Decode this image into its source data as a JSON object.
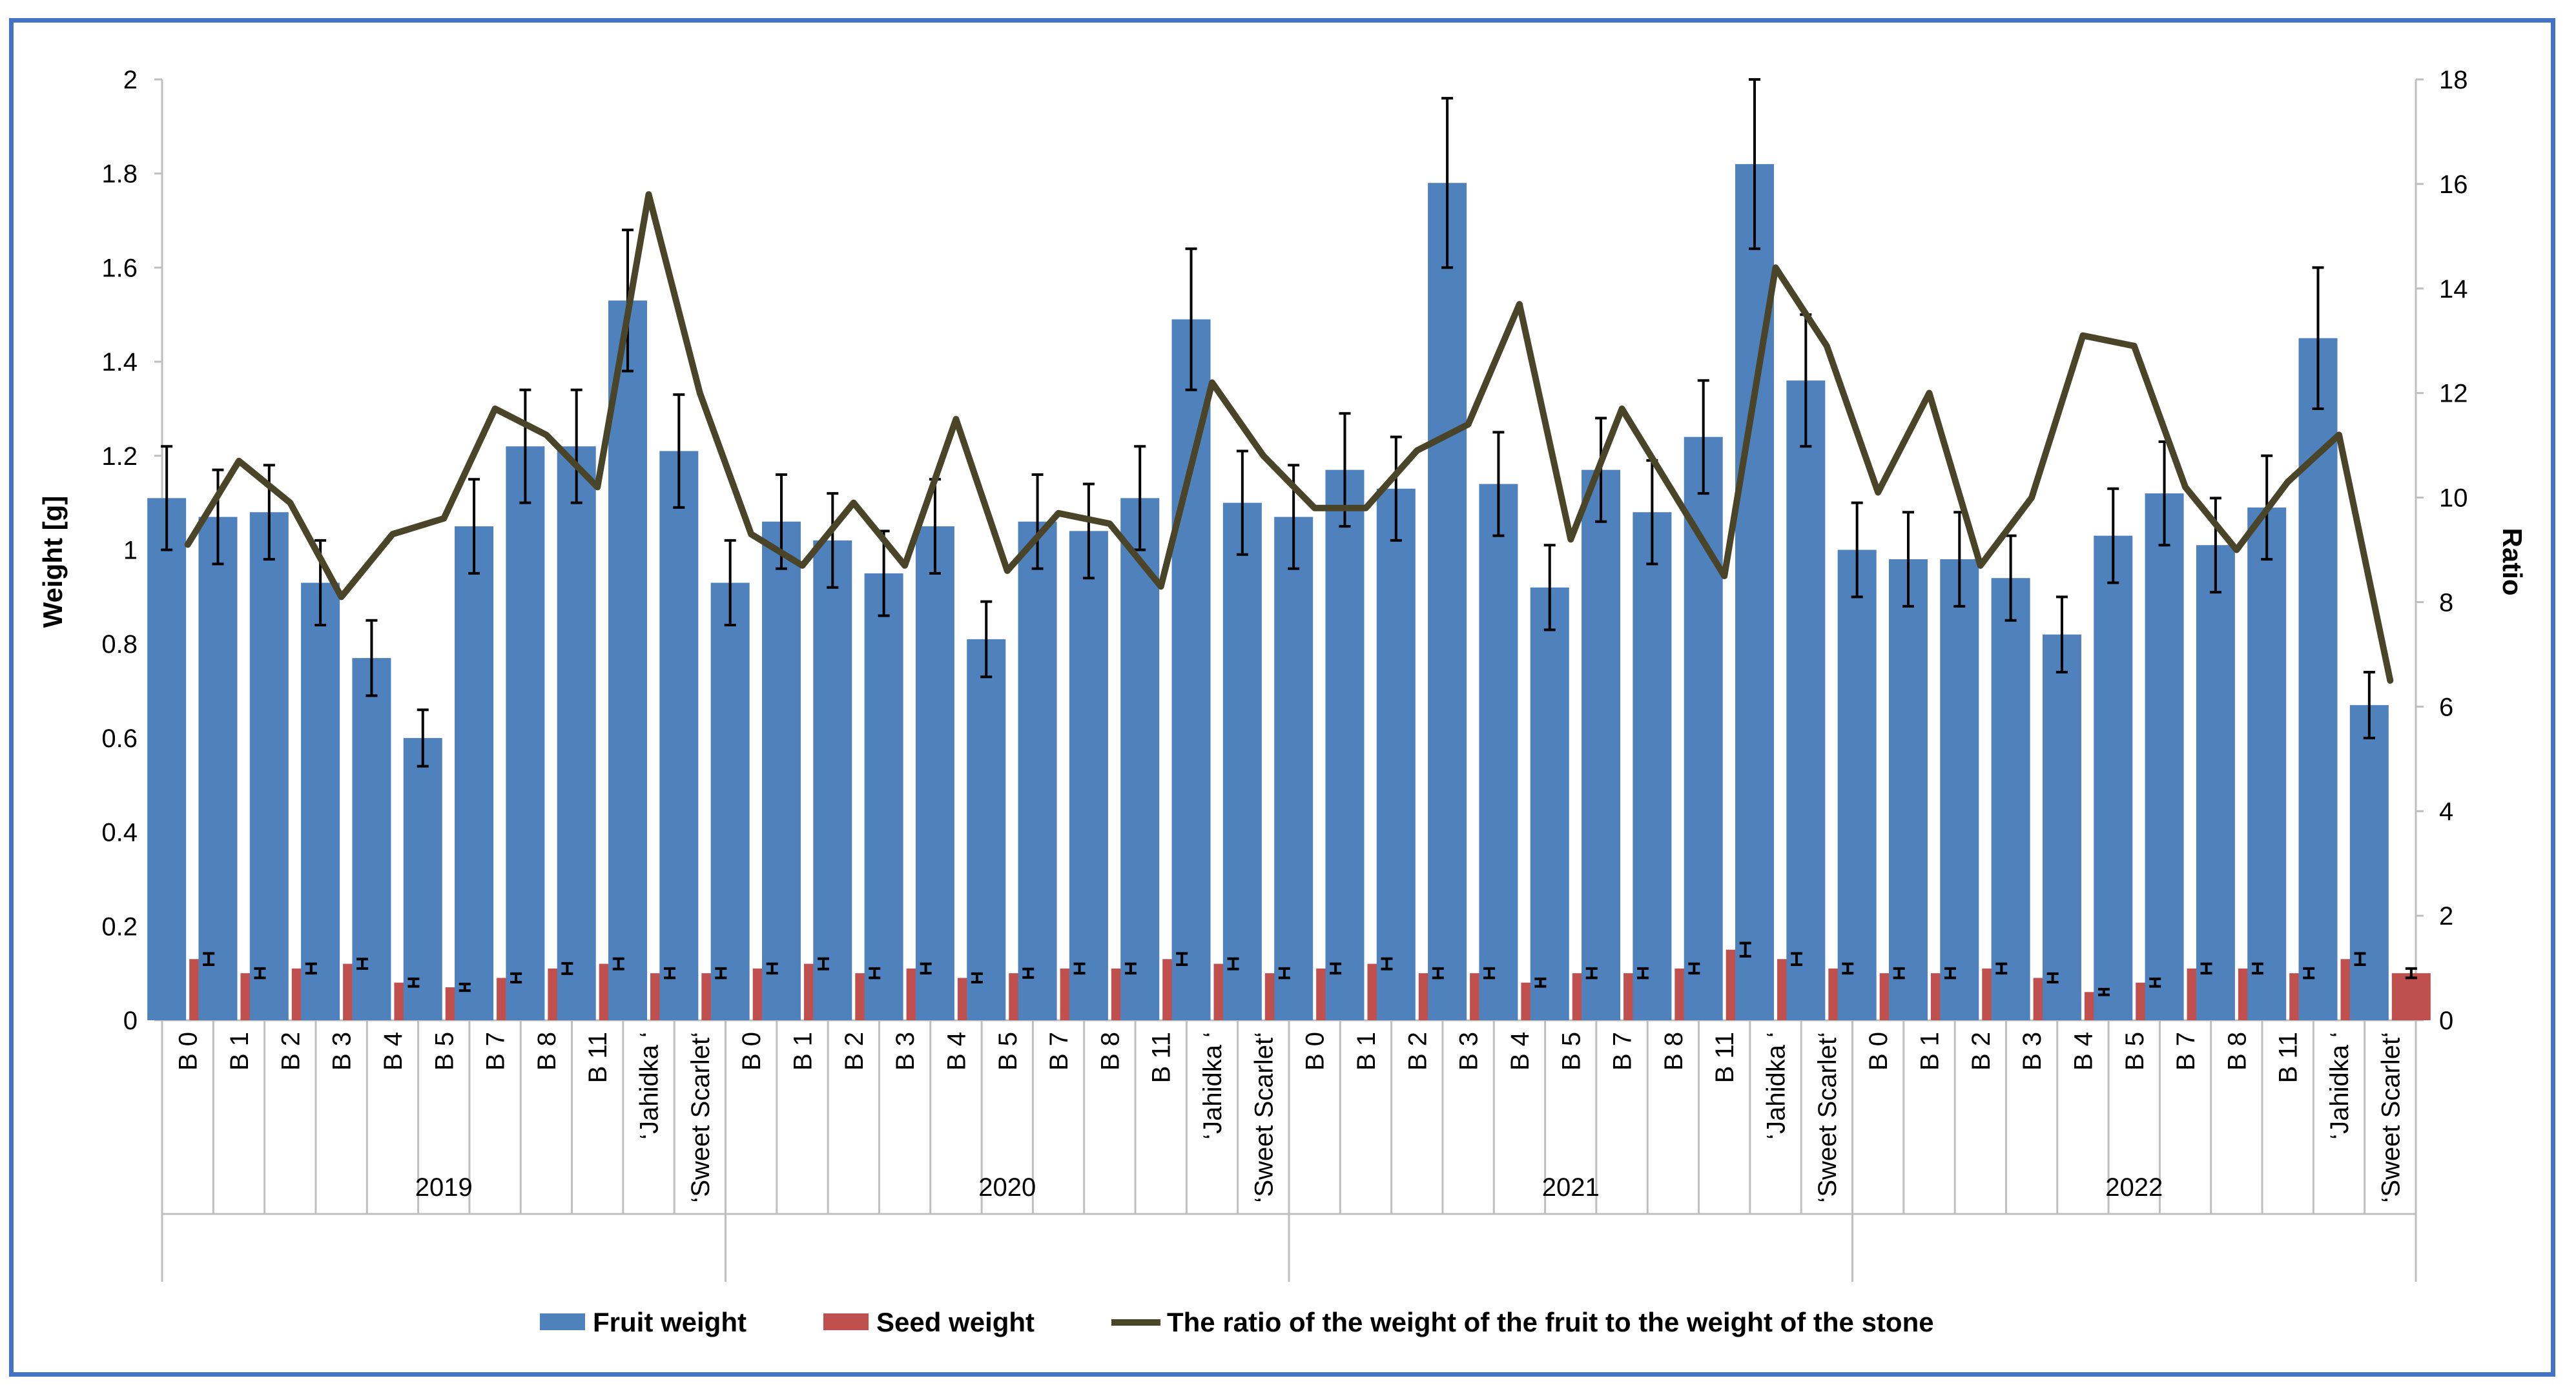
{
  "chart_data": {
    "type": "bar",
    "title": "",
    "ylabel": "Weight [g]",
    "y2label": "Ratio",
    "ylim": [
      0,
      2
    ],
    "y_ticks": [
      0,
      0.2,
      0.4,
      0.6,
      0.8,
      1,
      1.2,
      1.4,
      1.6,
      1.8,
      2
    ],
    "y_tick_labels": [
      "0",
      "0.2",
      "0.4",
      "0.6",
      "0.8",
      "1",
      "1.2",
      "1.4",
      "1.6",
      "1.8",
      "2"
    ],
    "y2lim": [
      0,
      18
    ],
    "y2_ticks": [
      0,
      2,
      4,
      6,
      8,
      10,
      12,
      14,
      16,
      18
    ],
    "y2_tick_labels": [
      "0",
      "2",
      "4",
      "6",
      "8",
      "10",
      "12",
      "14",
      "16",
      "18"
    ],
    "groups": [
      "2019",
      "2020",
      "2021",
      "2022"
    ],
    "group_categories": [
      "B 0",
      "B 1",
      "B 2",
      "B 3",
      "B 4",
      "B 5",
      "B 7",
      "B 8",
      "B 11",
      "‘Jahidka ‘",
      "‘Sweet Scarlet‘"
    ],
    "grid": false,
    "legend_position": "bottom",
    "series": [
      {
        "name": "Fruit weight",
        "kind": "bar",
        "axis": "left",
        "color": "#4F81BD",
        "values": [
          1.11,
          1.07,
          1.08,
          0.93,
          0.77,
          0.6,
          1.05,
          1.22,
          1.22,
          1.53,
          1.21,
          0.93,
          1.06,
          1.02,
          0.95,
          1.05,
          0.81,
          1.06,
          1.04,
          1.11,
          1.49,
          1.1,
          1.07,
          1.17,
          1.13,
          1.78,
          1.14,
          0.92,
          1.17,
          1.08,
          1.24,
          1.82,
          1.36,
          1.0,
          0.98,
          0.98,
          0.94,
          0.82,
          1.03,
          1.12,
          1.01,
          1.09,
          1.45,
          0.67
        ],
        "errors": [
          0.11,
          0.1,
          0.1,
          0.09,
          0.08,
          0.06,
          0.1,
          0.12,
          0.12,
          0.15,
          0.12,
          0.09,
          0.1,
          0.1,
          0.09,
          0.1,
          0.08,
          0.1,
          0.1,
          0.11,
          0.15,
          0.11,
          0.11,
          0.12,
          0.11,
          0.18,
          0.11,
          0.09,
          0.11,
          0.11,
          0.12,
          0.18,
          0.14,
          0.1,
          0.1,
          0.1,
          0.09,
          0.08,
          0.1,
          0.11,
          0.1,
          0.11,
          0.15,
          0.07
        ]
      },
      {
        "name": "Seed weight",
        "kind": "bar",
        "axis": "left",
        "color": "#C0504D",
        "values": [
          0.13,
          0.1,
          0.11,
          0.12,
          0.08,
          0.07,
          0.09,
          0.11,
          0.12,
          0.1,
          0.1,
          0.11,
          0.12,
          0.1,
          0.11,
          0.09,
          0.1,
          0.11,
          0.11,
          0.13,
          0.12,
          0.1,
          0.11,
          0.12,
          0.1,
          0.1,
          0.08,
          0.1,
          0.1,
          0.11,
          0.15,
          0.13,
          0.11,
          0.1,
          0.1,
          0.11,
          0.09,
          0.06,
          0.08,
          0.11,
          0.11,
          0.1,
          0.13,
          0.1
        ],
        "errors": [
          0.012,
          0.01,
          0.01,
          0.01,
          0.008,
          0.007,
          0.009,
          0.011,
          0.011,
          0.01,
          0.01,
          0.01,
          0.011,
          0.01,
          0.01,
          0.009,
          0.009,
          0.01,
          0.01,
          0.012,
          0.011,
          0.01,
          0.01,
          0.011,
          0.01,
          0.01,
          0.008,
          0.01,
          0.01,
          0.01,
          0.014,
          0.012,
          0.01,
          0.01,
          0.01,
          0.01,
          0.009,
          0.006,
          0.008,
          0.01,
          0.01,
          0.01,
          0.012,
          0.01
        ]
      },
      {
        "name": "The ratio of the weight of the fruit to the weight of the stone",
        "kind": "line",
        "axis": "right",
        "color": "#4A4529",
        "values": [
          9.1,
          10.7,
          9.9,
          8.1,
          9.3,
          9.6,
          11.7,
          11.2,
          10.2,
          15.8,
          12.0,
          9.3,
          8.7,
          9.9,
          8.7,
          11.5,
          8.6,
          9.7,
          9.5,
          8.3,
          12.2,
          10.8,
          9.8,
          9.8,
          10.9,
          11.4,
          13.7,
          9.2,
          11.7,
          10.1,
          8.5,
          14.4,
          12.9,
          10.1,
          12.0,
          8.7,
          10.0,
          13.1,
          12.9,
          10.2,
          9.0,
          10.3,
          11.2,
          6.5
        ]
      }
    ]
  }
}
